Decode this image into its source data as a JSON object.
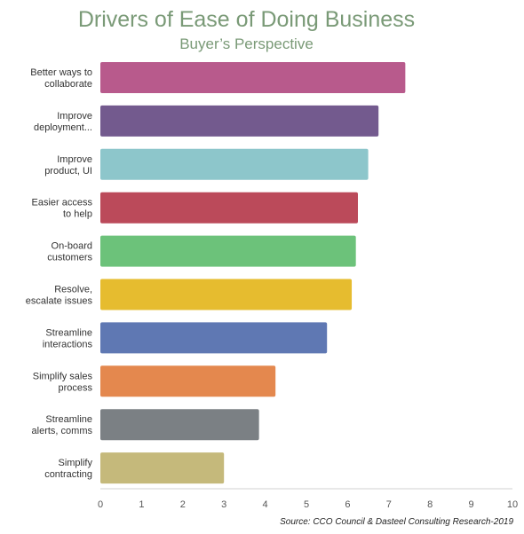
{
  "chart_data": {
    "type": "bar",
    "orientation": "horizontal",
    "title": "Drivers of Ease of Doing Business",
    "subtitle": "Buyer’s Perspective",
    "categories": [
      [
        "Better ways to",
        "collaborate"
      ],
      [
        "Improve",
        "deployment..."
      ],
      [
        "Improve",
        "product, UI"
      ],
      [
        "Easier access",
        "to help"
      ],
      [
        "On-board",
        "customers"
      ],
      [
        "Resolve,",
        "escalate issues"
      ],
      [
        "Streamline",
        "interactions"
      ],
      [
        "Simplify sales",
        "process"
      ],
      [
        "Streamline",
        "alerts, comms"
      ],
      [
        "Simplify",
        "contracting"
      ]
    ],
    "values": [
      7.4,
      6.75,
      6.5,
      6.25,
      6.2,
      6.1,
      5.5,
      4.25,
      3.85,
      3.0
    ],
    "colors": [
      "#b85a8c",
      "#735a8e",
      "#8dc6cb",
      "#bb4a5a",
      "#6cc27a",
      "#e6bc2f",
      "#5f78b3",
      "#e4884e",
      "#7b8084",
      "#c5b97b"
    ],
    "xlim": [
      0,
      10
    ],
    "xticks": [
      "0",
      "1",
      "2",
      "3",
      "4",
      "5",
      "6",
      "7",
      "8",
      "9",
      "10"
    ],
    "grid": false,
    "legend": "none"
  },
  "source": "Source: CCO Council & Dasteel Consulting Research-2019"
}
